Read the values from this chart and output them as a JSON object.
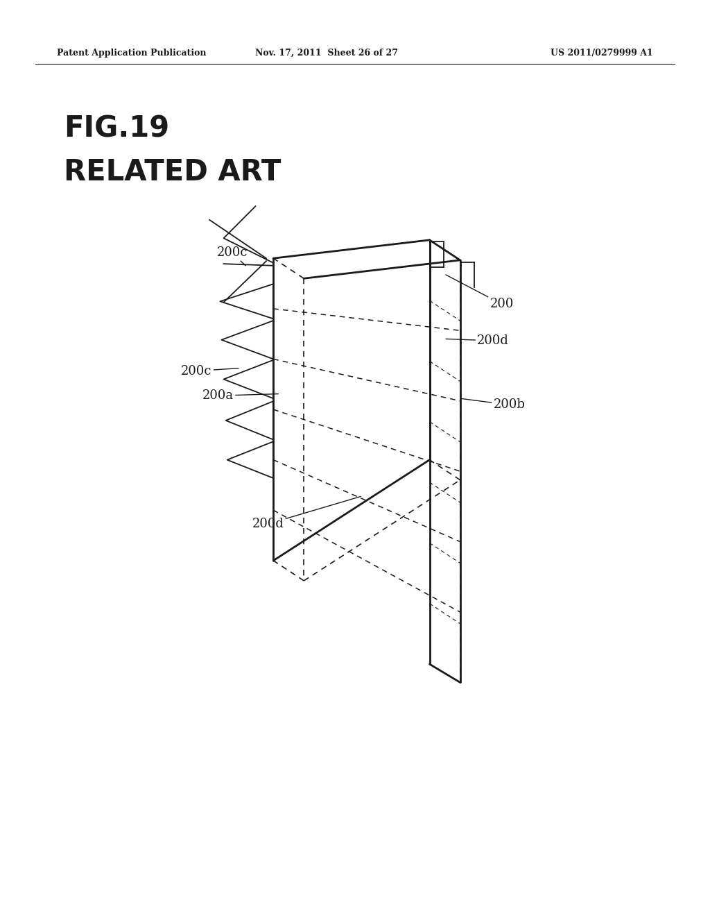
{
  "bg_color": "#ffffff",
  "line_color": "#1a1a1a",
  "text_color": "#1a1a1a",
  "header_left": "Patent Application Publication",
  "header_mid": "Nov. 17, 2011  Sheet 26 of 27",
  "header_right": "US 2011/0279999 A1",
  "fig_label": "FIG.19",
  "fig_sublabel": "RELATED ART"
}
